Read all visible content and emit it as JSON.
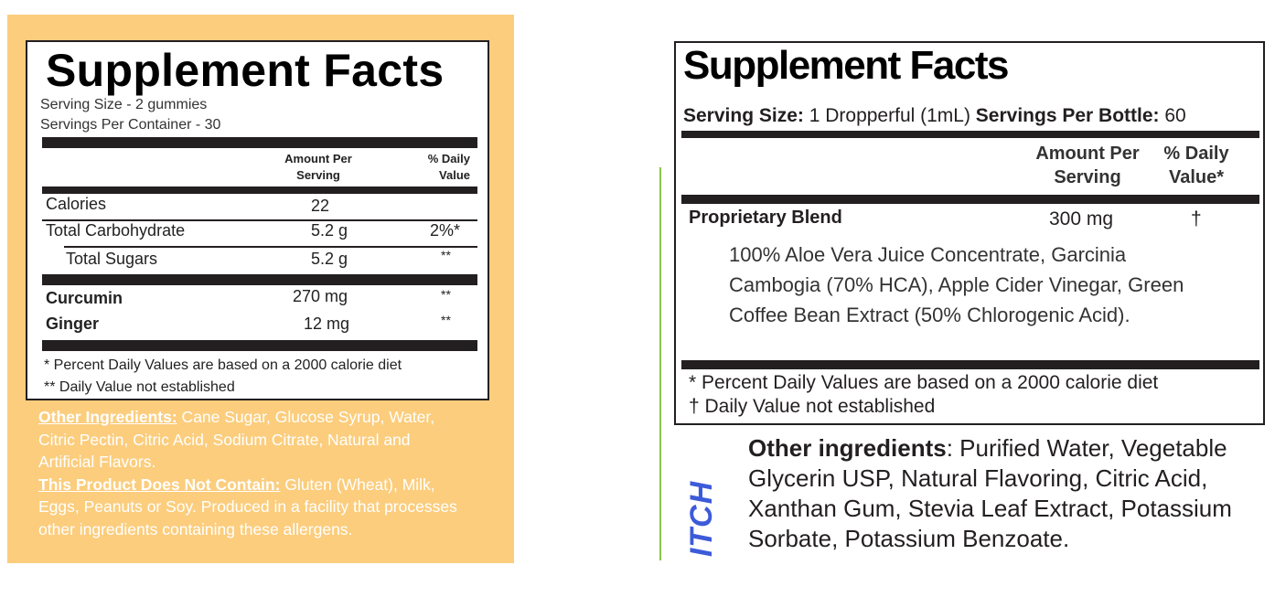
{
  "left_label": {
    "title": "Supplement Facts",
    "serving_size": "Serving Size - 2 gummies",
    "servings_per_container": "Servings Per Container - 30",
    "header_amount": "Amount Per Serving",
    "header_dv": "% Daily Value",
    "rows": [
      {
        "name": "Calories",
        "amount": "22",
        "dv": ""
      },
      {
        "name": "Total Carbohydrate",
        "amount": "5.2 g",
        "dv": "2%*"
      },
      {
        "name": "Total Sugars",
        "amount": "5.2 g",
        "dv": "**"
      },
      {
        "name": "Curcumin",
        "amount": "270 mg",
        "dv": "**"
      },
      {
        "name": "Ginger",
        "amount": "12 mg",
        "dv": "**"
      }
    ],
    "footnote_1": "* Percent Daily Values are based on a 2000 calorie diet",
    "footnote_2": "** Daily Value not established",
    "other_ingredients_label": "Other Ingredients:",
    "other_ingredients_text": " Cane Sugar, Glucose Syrup, Water, Citric Pectin, Citric Acid, Sodium Citrate, Natural and Artificial Flavors.",
    "not_contain_label": "This Product Does Not Contain:",
    "not_contain_text": " Gluten (Wheat), Milk, Eggs, Peanuts or Soy. Produced in a facility that processes other ingredients containing these allergens."
  },
  "right_label": {
    "title": "Supplement Facts",
    "serving_size_label": "Serving Size:",
    "serving_size_value": " 1 Dropperful (1mL) ",
    "servings_per_bottle_label": "Servings Per Bottle:",
    "servings_per_bottle_value": " 60",
    "header_amount": "Amount Per Serving",
    "header_dv": "% Daily Value*",
    "blend_name": "Proprietary Blend",
    "blend_amount": "300 mg",
    "blend_dv": "†",
    "blend_ingredients": "100% Aloe Vera Juice Concentrate, Garcinia Cambogia (70% HCA), Apple Cider Vinegar, Green Coffee Bean Extract (50% Chlorogenic Acid).",
    "footnote_1": "* Percent Daily Values are based on a 2000 calorie diet",
    "footnote_2": "† Daily Value not established",
    "other_ingredients_label": "Other ingredients",
    "other_ingredients_text": ": Purified Water, Vegetable Glycerin USP, Natural Flavoring, Citric Acid, Xanthan Gum, Stevia Leaf Extract, Potassium Sorbate, Potassium Benzoate.",
    "brand_fragment": "ITCH"
  },
  "colors": {
    "left_background": "#fbcd7d",
    "rule": "#231f20",
    "divider_green": "#8bc34a",
    "brand_blue": "#3d5bd9"
  }
}
